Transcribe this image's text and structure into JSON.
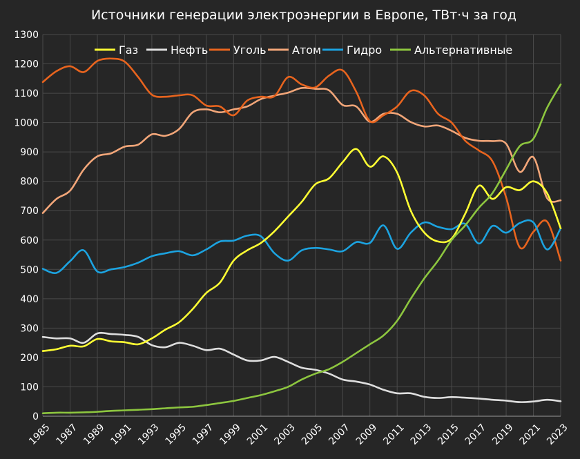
{
  "chart_data": {
    "type": "line",
    "title": "Источники генерации электроэнергии в Европе, ТВт·ч  за год",
    "xlabel": "",
    "ylabel": "",
    "xlim": [
      1985,
      2023
    ],
    "ylim": [
      0,
      1300
    ],
    "y_ticks": [
      0,
      100,
      200,
      300,
      400,
      500,
      600,
      700,
      800,
      900,
      1000,
      1100,
      1200,
      1300
    ],
    "x_ticks": [
      1985,
      1987,
      1989,
      1991,
      1993,
      1995,
      1997,
      1999,
      2001,
      2003,
      2005,
      2007,
      2009,
      2011,
      2013,
      2015,
      2017,
      2019,
      2021,
      2023
    ],
    "grid": true,
    "legend_position": "top",
    "x": [
      1985,
      1986,
      1987,
      1988,
      1989,
      1990,
      1991,
      1992,
      1993,
      1994,
      1995,
      1996,
      1997,
      1998,
      1999,
      2000,
      2001,
      2002,
      2003,
      2004,
      2005,
      2006,
      2007,
      2008,
      2009,
      2010,
      2011,
      2012,
      2013,
      2014,
      2015,
      2016,
      2017,
      2018,
      2019,
      2020,
      2021,
      2022,
      2023
    ],
    "series": [
      {
        "name": "Газ",
        "color": "#ffff33",
        "values": [
          222,
          228,
          240,
          238,
          263,
          255,
          252,
          245,
          265,
          295,
          320,
          365,
          420,
          455,
          530,
          565,
          590,
          630,
          680,
          730,
          790,
          810,
          865,
          910,
          850,
          885,
          830,
          700,
          625,
          595,
          605,
          690,
          785,
          740,
          780,
          770,
          800,
          760,
          640
        ]
      },
      {
        "name": "Нефть",
        "color": "#dedede",
        "values": [
          270,
          265,
          265,
          250,
          282,
          280,
          277,
          270,
          242,
          235,
          250,
          240,
          225,
          230,
          210,
          190,
          190,
          202,
          185,
          165,
          158,
          145,
          125,
          118,
          108,
          90,
          78,
          78,
          66,
          62,
          65,
          63,
          60,
          56,
          53,
          48,
          50,
          56,
          51
        ]
      },
      {
        "name": "Уголь",
        "color": "#e8641e",
        "values": [
          1138,
          1175,
          1192,
          1172,
          1210,
          1218,
          1208,
          1155,
          1095,
          1088,
          1093,
          1093,
          1058,
          1055,
          1025,
          1075,
          1088,
          1090,
          1155,
          1130,
          1120,
          1160,
          1178,
          1105,
          1005,
          1025,
          1055,
          1108,
          1092,
          1030,
          1000,
          938,
          905,
          868,
          745,
          575,
          628,
          663,
          530
        ]
      },
      {
        "name": "Атом",
        "color": "#f2a679",
        "values": [
          692,
          740,
          768,
          840,
          885,
          895,
          918,
          925,
          960,
          955,
          978,
          1035,
          1045,
          1035,
          1045,
          1055,
          1080,
          1092,
          1102,
          1118,
          1115,
          1110,
          1060,
          1055,
          1003,
          1030,
          1030,
          1002,
          987,
          990,
          972,
          948,
          938,
          937,
          928,
          832,
          882,
          743,
          735
        ]
      },
      {
        "name": "Гидро",
        "color": "#1ca3e0",
        "values": [
          502,
          488,
          528,
          565,
          493,
          500,
          508,
          523,
          545,
          555,
          562,
          548,
          568,
          595,
          598,
          615,
          613,
          555,
          530,
          565,
          573,
          568,
          562,
          593,
          590,
          650,
          570,
          625,
          660,
          645,
          637,
          655,
          588,
          648,
          625,
          658,
          660,
          568,
          640
        ]
      },
      {
        "name": "Альтернативные",
        "color": "#8dc63f",
        "values": [
          10,
          12,
          12,
          13,
          15,
          18,
          20,
          22,
          24,
          27,
          30,
          32,
          38,
          45,
          52,
          62,
          72,
          85,
          100,
          125,
          145,
          160,
          185,
          215,
          245,
          275,
          325,
          400,
          470,
          530,
          600,
          650,
          710,
          760,
          840,
          920,
          945,
          1050,
          1130
        ]
      }
    ]
  }
}
